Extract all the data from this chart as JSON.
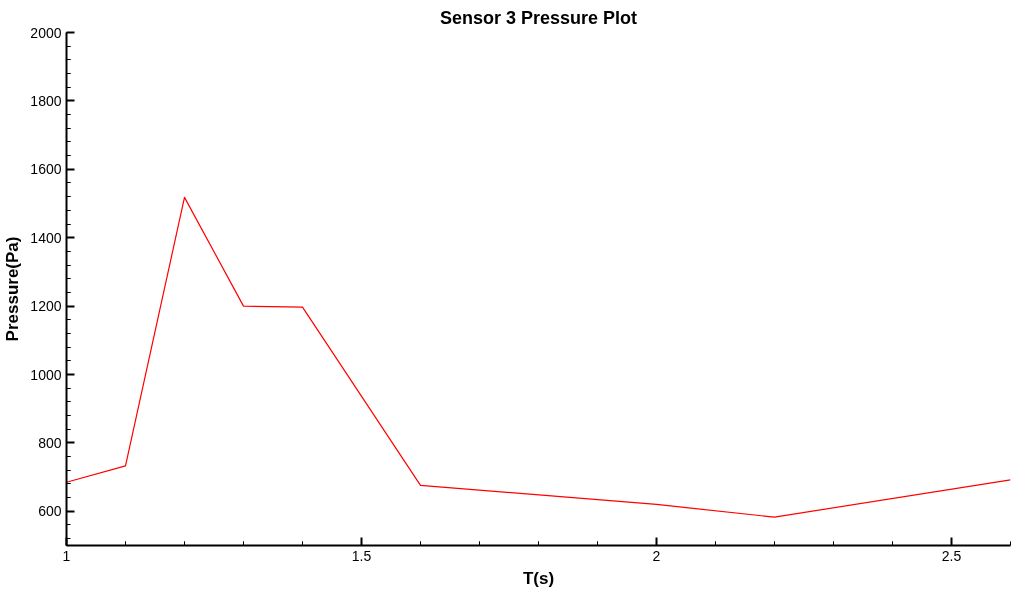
{
  "chart_data": {
    "type": "line",
    "title": "Sensor 3 Pressure Plot",
    "xlabel": "T(s)",
    "ylabel": "Pressure(Pa)",
    "x": [
      1.0,
      1.1,
      1.2,
      1.3,
      1.4,
      1.6,
      2.0,
      2.2,
      2.6
    ],
    "series": [
      {
        "color": "#ff0000",
        "values": [
          685,
          733,
          1518,
          1200,
          1197,
          676,
          620,
          583,
          692
        ]
      }
    ],
    "xlim": [
      1,
      2.6
    ],
    "xticks": [
      1,
      1.5,
      2,
      2.5
    ],
    "ylim": [
      500,
      2000
    ],
    "yticks": [
      600,
      800,
      1000,
      1200,
      1400,
      1600,
      1800,
      2000
    ],
    "grid": false,
    "marker": "none",
    "line_style": "solid"
  }
}
